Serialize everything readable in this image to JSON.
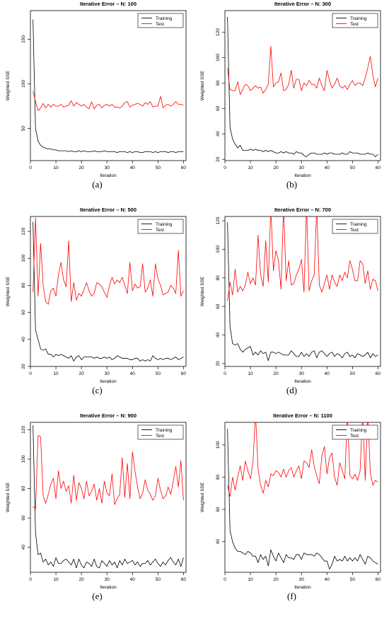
{
  "chart_data": [
    {
      "type": "line",
      "title": "Iterative Error – N:  100",
      "xlabel": "Iteration",
      "ylabel": "Weighted SSE",
      "caption": "(a)",
      "xlim": [
        0,
        61
      ],
      "ylim": [
        14,
        182
      ],
      "xticks": [
        0,
        10,
        20,
        30,
        40,
        50,
        60
      ],
      "yticks": [
        50,
        100,
        150
      ],
      "legend": "top-right",
      "series": [
        {
          "name": "Training",
          "color": "#000000",
          "values": [
            172,
            50,
            36,
            31,
            29,
            28,
            27,
            27,
            26,
            26,
            25,
            25,
            25,
            25,
            24,
            25,
            24,
            24,
            25,
            24,
            25,
            24,
            24,
            24,
            25,
            24,
            24,
            24,
            25,
            24,
            24,
            24,
            24,
            23,
            24,
            24,
            24,
            23,
            24,
            23,
            24,
            24,
            23,
            23,
            24,
            24,
            24,
            23,
            24,
            23,
            24,
            24,
            24,
            23,
            24,
            24,
            23,
            24,
            24,
            24
          ]
        },
        {
          "name": "Test",
          "color": "#ff0000",
          "values": [
            92,
            80,
            70,
            73,
            78,
            73,
            77,
            74,
            77,
            75,
            75,
            77,
            74,
            75,
            76,
            81,
            75,
            79,
            77,
            75,
            77,
            74,
            72,
            80,
            72,
            76,
            77,
            73,
            76,
            77,
            75,
            77,
            74,
            74,
            73,
            75,
            79,
            80,
            74,
            76,
            77,
            78,
            77,
            75,
            79,
            77,
            80,
            74,
            75,
            75,
            86,
            73,
            76,
            77,
            75,
            77,
            80,
            77,
            77,
            76
          ]
        }
      ]
    },
    {
      "type": "line",
      "title": "Iterative Error – N:  300",
      "xlabel": "Iteration",
      "ylabel": "Weighted SSE",
      "caption": "(b)",
      "xlim": [
        0,
        61
      ],
      "ylim": [
        19,
        137
      ],
      "xticks": [
        0,
        10,
        20,
        30,
        40,
        50,
        60
      ],
      "yticks": [
        20,
        40,
        60,
        80,
        100,
        120
      ],
      "legend": "top-right",
      "series": [
        {
          "name": "Training",
          "color": "#000000",
          "values": [
            132,
            45,
            36,
            32,
            29,
            31,
            27,
            27,
            27,
            28,
            27,
            28,
            27,
            27,
            26,
            27,
            26,
            27,
            26,
            25,
            25,
            26,
            25,
            26,
            25,
            25,
            24,
            26,
            25,
            25,
            23,
            22,
            24,
            25,
            25,
            24,
            24,
            24,
            25,
            24,
            25,
            25,
            24,
            24,
            24,
            25,
            24,
            24,
            26,
            25,
            25,
            25,
            24,
            24,
            24,
            25,
            24,
            24,
            22,
            24
          ]
        },
        {
          "name": "Test",
          "color": "#ff0000",
          "values": [
            92,
            75,
            74,
            74,
            81,
            71,
            75,
            79,
            78,
            74,
            76,
            78,
            76,
            77,
            72,
            75,
            79,
            109,
            77,
            80,
            81,
            88,
            74,
            75,
            79,
            90,
            76,
            83,
            83,
            74,
            80,
            78,
            82,
            79,
            79,
            76,
            84,
            78,
            74,
            90,
            82,
            76,
            79,
            84,
            78,
            76,
            78,
            75,
            79,
            82,
            78,
            80,
            80,
            78,
            84,
            92,
            101,
            86,
            77,
            84
          ]
        }
      ]
    },
    {
      "type": "line",
      "title": "Iterative Error – N:  500",
      "xlabel": "Iteration",
      "ylabel": "Weighted SSE",
      "caption": "(c)",
      "xlim": [
        0,
        61
      ],
      "ylim": [
        20,
        131
      ],
      "xticks": [
        0,
        10,
        20,
        30,
        40,
        50,
        60
      ],
      "yticks": [
        20,
        40,
        60,
        80,
        100,
        120
      ],
      "legend": "top-right",
      "series": [
        {
          "name": "Training",
          "color": "#000000",
          "values": [
            127,
            47,
            40,
            33,
            32,
            33,
            29,
            29,
            27,
            29,
            28,
            29,
            28,
            27,
            26,
            28,
            24,
            27,
            28,
            25,
            27,
            27,
            27,
            27,
            26,
            27,
            26,
            26,
            27,
            26,
            27,
            25,
            26,
            28,
            27,
            26,
            26,
            26,
            25,
            25,
            26,
            26,
            24,
            25,
            24,
            25,
            24,
            28,
            26,
            25,
            26,
            25,
            26,
            26,
            25,
            26,
            27,
            25,
            26,
            27
          ]
        },
        {
          "name": "Test",
          "color": "#ff0000",
          "values": [
            75,
            130,
            72,
            111,
            80,
            68,
            66,
            76,
            78,
            72,
            88,
            97,
            84,
            79,
            113,
            68,
            82,
            69,
            74,
            72,
            77,
            82,
            76,
            72,
            74,
            82,
            81,
            79,
            75,
            71,
            80,
            86,
            81,
            84,
            82,
            86,
            80,
            74,
            97,
            76,
            81,
            78,
            79,
            96,
            75,
            78,
            84,
            72,
            96,
            85,
            80,
            73,
            74,
            75,
            80,
            78,
            74,
            106,
            72,
            76
          ]
        }
      ]
    },
    {
      "type": "line",
      "title": "Iterative Error – N:  700",
      "xlabel": "Iteration",
      "ylabel": "Weighted SSE",
      "caption": "(d)",
      "xlim": [
        0,
        61
      ],
      "ylim": [
        18,
        123
      ],
      "xticks": [
        0,
        10,
        20,
        30,
        40,
        50,
        60
      ],
      "yticks": [
        20,
        40,
        60,
        80,
        100,
        120
      ],
      "legend": "top-right",
      "series": [
        {
          "name": "Training",
          "color": "#000000",
          "values": [
            119,
            46,
            34,
            33,
            34,
            30,
            28,
            30,
            31,
            32,
            26,
            28,
            26,
            29,
            27,
            28,
            22,
            28,
            28,
            27,
            28,
            27,
            26,
            26,
            26,
            29,
            27,
            25,
            25,
            28,
            25,
            27,
            25,
            28,
            29,
            24,
            28,
            29,
            27,
            25,
            27,
            28,
            25,
            27,
            26,
            24,
            27,
            28,
            25,
            26,
            24,
            27,
            26,
            25,
            26,
            28,
            24,
            27,
            25,
            26
          ]
        },
        {
          "name": "Test",
          "color": "#ff0000",
          "values": [
            64,
            77,
            68,
            86,
            70,
            74,
            71,
            75,
            84,
            76,
            80,
            75,
            110,
            82,
            74,
            106,
            77,
            130,
            85,
            99,
            92,
            72,
            130,
            78,
            92,
            75,
            76,
            82,
            86,
            93,
            70,
            130,
            71,
            78,
            82,
            130,
            75,
            70,
            76,
            82,
            72,
            82,
            77,
            74,
            82,
            78,
            84,
            80,
            92,
            86,
            78,
            78,
            92,
            90,
            76,
            85,
            72,
            79,
            78,
            71
          ]
        }
      ]
    },
    {
      "type": "line",
      "title": "Iterative Error – N:  900",
      "xlabel": "Iteration",
      "ylabel": "Weighted SSE",
      "caption": "(e)",
      "xlim": [
        0,
        61
      ],
      "ylim": [
        23,
        125
      ],
      "xticks": [
        0,
        10,
        20,
        30,
        40,
        50,
        60
      ],
      "yticks": [
        40,
        60,
        80,
        100,
        120
      ],
      "legend": "top-right",
      "series": [
        {
          "name": "Training",
          "color": "#000000",
          "values": [
            123,
            50,
            35,
            36,
            30,
            32,
            28,
            30,
            27,
            33,
            29,
            29,
            31,
            32,
            30,
            28,
            32,
            26,
            32,
            28,
            26,
            30,
            29,
            27,
            32,
            27,
            26,
            31,
            29,
            27,
            31,
            28,
            30,
            26,
            31,
            28,
            32,
            29,
            30,
            31,
            28,
            30,
            27,
            29,
            29,
            31,
            28,
            30,
            32,
            29,
            27,
            30,
            28,
            31,
            33,
            30,
            28,
            32,
            27,
            33
          ]
        },
        {
          "name": "Test",
          "color": "#ff0000",
          "values": [
            68,
            66,
            116,
            115,
            75,
            70,
            76,
            83,
            87,
            73,
            92,
            80,
            85,
            78,
            82,
            70,
            89,
            72,
            84,
            80,
            73,
            85,
            75,
            78,
            83,
            72,
            80,
            70,
            85,
            77,
            75,
            90,
            69,
            73,
            76,
            101,
            74,
            97,
            73,
            105,
            92,
            81,
            73,
            77,
            86,
            79,
            76,
            72,
            75,
            87,
            79,
            73,
            75,
            81,
            76,
            85,
            95,
            81,
            99,
            72
          ]
        }
      ]
    },
    {
      "type": "line",
      "title": "Iterative Error – N:  1100",
      "xlabel": "Iteration",
      "ylabel": "Weighted SSE",
      "caption": "(f)",
      "xlim": [
        0,
        61
      ],
      "ylim": [
        21,
        114
      ],
      "xticks": [
        0,
        10,
        20,
        30,
        40,
        50,
        60
      ],
      "yticks": [
        40,
        60,
        80,
        100
      ],
      "legend": "top-right",
      "series": [
        {
          "name": "Training",
          "color": "#000000",
          "values": [
            110,
            47,
            40,
            36,
            34,
            34,
            33,
            32,
            34,
            33,
            31,
            31,
            27,
            32,
            29,
            31,
            25,
            35,
            31,
            28,
            33,
            30,
            27,
            32,
            30,
            30,
            29,
            32,
            32,
            29,
            33,
            32,
            32,
            32,
            31,
            33,
            32,
            30,
            28,
            28,
            23,
            26,
            31,
            28,
            29,
            28,
            31,
            28,
            30,
            28,
            30,
            28,
            32,
            29,
            26,
            31,
            30,
            28,
            27,
            26
          ]
        },
        {
          "name": "Test",
          "color": "#ff0000",
          "values": [
            75,
            68,
            80,
            72,
            80,
            87,
            78,
            90,
            84,
            79,
            89,
            120,
            85,
            75,
            70,
            78,
            74,
            82,
            81,
            84,
            83,
            80,
            85,
            80,
            84,
            86,
            80,
            84,
            87,
            79,
            90,
            89,
            86,
            97,
            87,
            81,
            76,
            93,
            99,
            82,
            92,
            95,
            80,
            75,
            89,
            84,
            79,
            120,
            81,
            79,
            82,
            78,
            84,
            120,
            78,
            120,
            83,
            75,
            78,
            77
          ]
        }
      ]
    }
  ]
}
